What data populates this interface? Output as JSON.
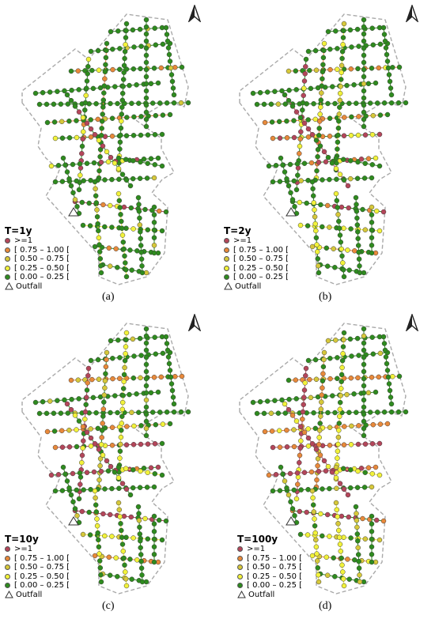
{
  "legend": {
    "classes": [
      {
        "label": ">=1",
        "color": "#b4465a"
      },
      {
        "label": "[ 0.75 – 1.00 [",
        "color": "#e8893a"
      },
      {
        "label": "[ 0.50 – 0.75 [",
        "color": "#d6c83a"
      },
      {
        "label": "[ 0.25 – 0.50 [",
        "color": "#f2f23a"
      },
      {
        "label": "[ 0.00 – 0.25 [",
        "color": "#2e8b1e"
      }
    ],
    "outfall": "Outfall",
    "outfall_icon": "triangle-outline-icon",
    "boundary_color": "#a9a9a9"
  },
  "north_arrow_icon": "north-arrow-icon",
  "panels": [
    {
      "title": "T=1y",
      "caption": "(a)"
    },
    {
      "title": "T=2y",
      "caption": "(b)"
    },
    {
      "title": "T=10y",
      "caption": "(c)"
    },
    {
      "title": "T=100y",
      "caption": "(d)"
    }
  ]
}
